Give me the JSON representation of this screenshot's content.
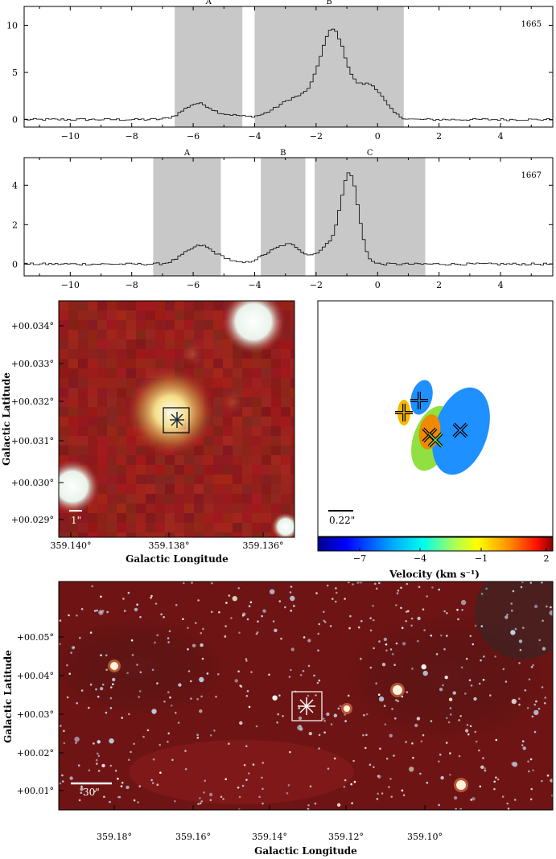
{
  "chart_data": [
    {
      "type": "line",
      "panel": "spectrum-1665",
      "label": "1665",
      "xlim": [
        -11.5,
        5.7
      ],
      "ylim": [
        -0.8,
        12.0
      ],
      "xticks": [
        -10,
        -8,
        -6,
        -4,
        -2,
        0,
        2,
        4
      ],
      "yticks": [
        0,
        5,
        10
      ],
      "shaded_regions": [
        {
          "name": "A",
          "x": [
            -6.6,
            -4.4
          ]
        },
        {
          "name": "B",
          "x": [
            -4.0,
            0.85
          ]
        }
      ],
      "peaks": [
        {
          "x": -5.9,
          "y": 1.8
        },
        {
          "x": -1.45,
          "y": 11.0
        },
        {
          "x": -0.05,
          "y": 4.3
        }
      ],
      "baseline": 0.0
    },
    {
      "type": "line",
      "panel": "spectrum-1667",
      "label": "1667",
      "xlim": [
        -11.5,
        5.7
      ],
      "ylim": [
        -0.6,
        5.4
      ],
      "xticks": [
        -10,
        -8,
        -6,
        -4,
        -2,
        0,
        2,
        4
      ],
      "yticks": [
        0,
        2,
        4
      ],
      "shaded_regions": [
        {
          "name": "A",
          "x": [
            -7.3,
            -5.1
          ]
        },
        {
          "name": "B",
          "x": [
            -3.8,
            -2.35
          ]
        },
        {
          "name": "C",
          "x": [
            -2.05,
            1.55
          ]
        }
      ],
      "peaks": [
        {
          "x": -5.8,
          "y": 0.85
        },
        {
          "x": -3.2,
          "y": 0.95
        },
        {
          "x": -0.95,
          "y": 5.2
        }
      ],
      "baseline": 0.0
    },
    {
      "type": "image",
      "panel": "zoom-image",
      "xticks": [
        "359.140°",
        "359.138°",
        "359.136°"
      ],
      "yticks": [
        "+00.029°",
        "+00.030°",
        "+00.031°",
        "+00.032°",
        "+00.033°",
        "+00.034°"
      ],
      "xlabel": "Galactic Longitude",
      "ylabel": "Galactic Latitude",
      "scalebar": "1\""
    },
    {
      "type": "scatter",
      "panel": "maser-spots",
      "scalebar": "0.22\"",
      "colorbar": {
        "label": "Velocity (km s⁻¹)",
        "ticks": [
          "−7",
          "−4",
          "−1",
          "2"
        ],
        "range": [
          -8.5,
          2
        ]
      },
      "spots": [
        {
          "marker": "plus",
          "velocity": -6.0,
          "color": "#1e90ff"
        },
        {
          "marker": "plus",
          "velocity": 0.2,
          "color": "#f5b800"
        },
        {
          "marker": "cross",
          "velocity": 0.9,
          "color": "#f08a00"
        },
        {
          "marker": "cross",
          "velocity": -3.2,
          "color": "#8fe040"
        },
        {
          "marker": "cross",
          "velocity": -6.2,
          "color": "#1e90ff"
        }
      ]
    },
    {
      "type": "image",
      "panel": "wide-image",
      "xticks": [
        "359.18°",
        "359.16°",
        "359.14°",
        "359.12°",
        "359.10°"
      ],
      "yticks": [
        "+00.01°",
        "+00.02°",
        "+00.03°",
        "+00.04°",
        "+00.05°"
      ],
      "xlabel": "Galactic Longitude",
      "ylabel": "Galactic Latitude",
      "scalebar": "30\""
    }
  ]
}
